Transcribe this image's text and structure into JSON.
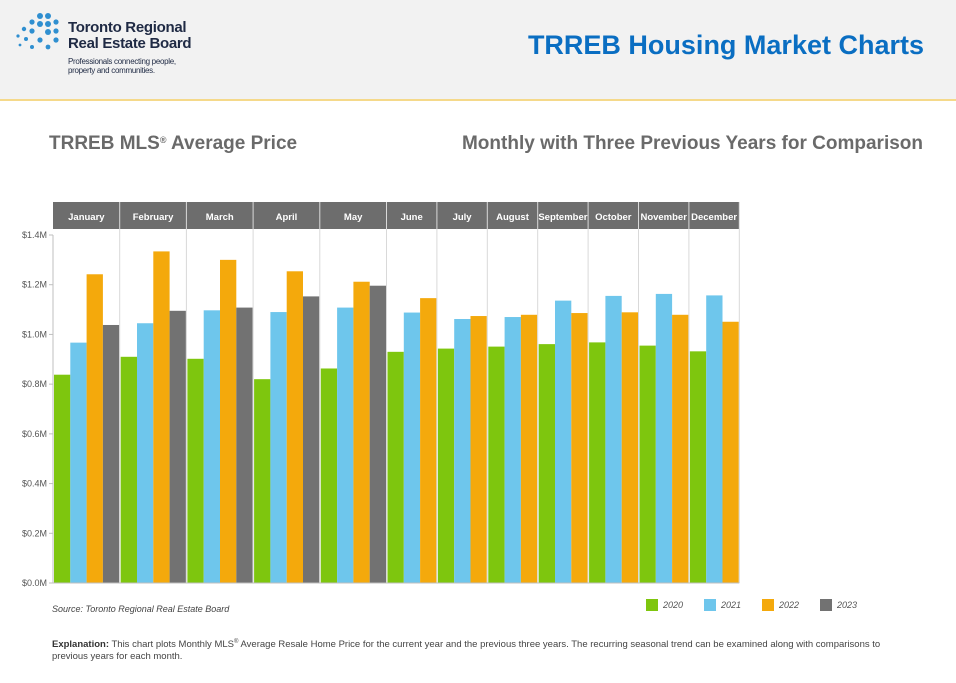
{
  "header": {
    "logo_name_line1": "Toronto Regional",
    "logo_name_line2": "Real Estate Board",
    "logo_tagline_line1": "Professionals connecting people,",
    "logo_tagline_line2": "property and communities.",
    "page_title": "TRREB Housing Market Charts"
  },
  "chart_header": {
    "title_main": "TRREB MLS",
    "title_reg": "®",
    "title_rest": " Average Price",
    "subtitle": "Monthly with Three Previous Years for Comparison"
  },
  "colors": {
    "2020": "#7ec60e",
    "2021": "#6ec6ec",
    "2022": "#f4a90c",
    "2023": "#727272",
    "month_band": "#6d6d6d",
    "brand_blue": "#0a6ec2"
  },
  "chart_data": {
    "type": "bar",
    "title": "TRREB MLS® Average Price",
    "subtitle": "Monthly with Three Previous Years for Comparison",
    "categories": [
      "January",
      "February",
      "March",
      "April",
      "May",
      "June",
      "July",
      "August",
      "September",
      "October",
      "November",
      "December"
    ],
    "series": [
      {
        "name": "2020",
        "values": [
          0.838,
          0.91,
          0.902,
          0.82,
          0.863,
          0.93,
          0.943,
          0.951,
          0.961,
          0.968,
          0.955,
          0.932
        ]
      },
      {
        "name": "2021",
        "values": [
          0.967,
          1.045,
          1.097,
          1.09,
          1.108,
          1.088,
          1.062,
          1.07,
          1.136,
          1.155,
          1.163,
          1.157
        ]
      },
      {
        "name": "2022",
        "values": [
          1.242,
          1.334,
          1.3,
          1.254,
          1.212,
          1.146,
          1.074,
          1.079,
          1.086,
          1.089,
          1.079,
          1.051
        ]
      },
      {
        "name": "2023",
        "values": [
          1.038,
          1.095,
          1.108,
          1.153,
          1.196,
          null,
          null,
          null,
          null,
          null,
          null,
          null
        ]
      }
    ],
    "yticks": [
      "$0.0M",
      "$0.2M",
      "$0.4M",
      "$0.6M",
      "$0.8M",
      "$1.0M",
      "$1.2M",
      "$1.4M"
    ],
    "ylim": [
      0,
      1.4
    ],
    "ylabel": "",
    "xlabel": "",
    "legend_position": "bottom-right",
    "grid": false
  },
  "footer": {
    "source": "Source: Toronto Regional Real Estate Board",
    "explanation_label": "Explanation:",
    "explanation_text_1": " This chart plots Monthly MLS",
    "explanation_reg": "®",
    "explanation_text_2": " Average Resale Home Price for the current year and the previous three years. The recurring seasonal trend can be examined along with comparisons to previous years for each month."
  }
}
